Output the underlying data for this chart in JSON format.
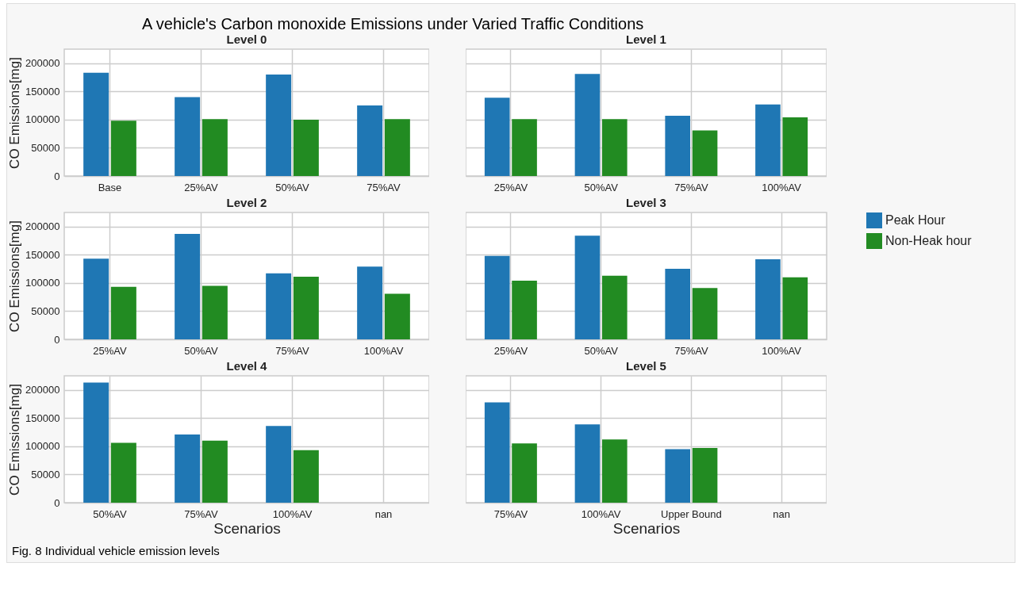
{
  "chart_data": [
    {
      "type": "bar",
      "title": "Level 0",
      "ylabel": "CO Emissions[mg]",
      "annotations": [
        "A vehicle's Carbon monoxide Emissions under Varied Traffic Conditions"
      ],
      "categories": [
        "Base",
        "25%AV",
        "50%AV",
        "75%AV"
      ],
      "series": [
        {
          "color": "#1f77b4",
          "values": [
            183000,
            140000,
            180000,
            125000
          ]
        },
        {
          "color": "#228b22",
          "values": [
            98000,
            101000,
            100000,
            101000
          ]
        }
      ],
      "ylim": [
        0,
        225000
      ],
      "yticks": [
        0,
        50000,
        100000,
        150000,
        200000
      ],
      "grid": true
    },
    {
      "type": "bar",
      "title": "Level 1",
      "categories": [
        "25%AV",
        "50%AV",
        "75%AV",
        "100%AV"
      ],
      "series": [
        {
          "color": "#1f77b4",
          "values": [
            139000,
            181000,
            107000,
            127000
          ]
        },
        {
          "color": "#228b22",
          "values": [
            101000,
            101000,
            81000,
            104000
          ]
        }
      ],
      "ylim": [
        0,
        225000
      ],
      "yticks": [
        0,
        50000,
        100000,
        150000,
        200000
      ],
      "grid": true,
      "tick_labels": "x"
    },
    {
      "type": "bar",
      "title": "Level 2",
      "ylabel": "CO Emissions[mg]",
      "categories": [
        "25%AV",
        "50%AV",
        "75%AV",
        "100%AV"
      ],
      "series": [
        {
          "color": "#1f77b4",
          "values": [
            143000,
            187000,
            117000,
            129000
          ]
        },
        {
          "color": "#228b22",
          "values": [
            93000,
            95000,
            111000,
            81000
          ]
        }
      ],
      "ylim": [
        0,
        225000
      ],
      "yticks": [
        0,
        50000,
        100000,
        150000,
        200000
      ],
      "grid": true
    },
    {
      "type": "bar",
      "title": "Level 3",
      "categories": [
        "25%AV",
        "50%AV",
        "75%AV",
        "100%AV"
      ],
      "series": [
        {
          "name": "Peak Hour",
          "color": "#1f77b4",
          "values": [
            148000,
            184000,
            125000,
            142000
          ]
        },
        {
          "name": "Non-Heak hour",
          "color": "#228b22",
          "values": [
            104000,
            113000,
            91000,
            110000
          ]
        }
      ],
      "ylim": [
        0,
        225000
      ],
      "yticks": [
        0,
        50000,
        100000,
        150000,
        200000
      ],
      "grid": true,
      "tick_labels": "x",
      "legend": "right"
    },
    {
      "type": "bar",
      "title": "Level 4",
      "ylabel": "CO Emissions[mg]",
      "xlabel": "Scenarios",
      "categories": [
        "50%AV",
        "75%AV",
        "100%AV",
        "nan"
      ],
      "series": [
        {
          "color": "#1f77b4",
          "values": [
            213000,
            121000,
            136000,
            null
          ]
        },
        {
          "color": "#228b22",
          "values": [
            106000,
            110000,
            93000,
            null
          ]
        }
      ],
      "ylim": [
        0,
        225000
      ],
      "yticks": [
        0,
        50000,
        100000,
        150000,
        200000
      ],
      "grid": true
    },
    {
      "type": "bar",
      "title": "Level 5",
      "xlabel": "Scenarios",
      "annotations": [
        "Fig. 8 Individual vehicle emission levels"
      ],
      "categories": [
        "75%AV",
        "100%AV",
        "Upper Bound",
        "nan"
      ],
      "series": [
        {
          "color": "#1f77b4",
          "values": [
            178000,
            139000,
            95000,
            null
          ]
        },
        {
          "color": "#228b22",
          "values": [
            105000,
            112000,
            97000,
            null
          ]
        }
      ],
      "ylim": [
        0,
        225000
      ],
      "yticks": [
        0,
        50000,
        100000,
        150000,
        200000
      ],
      "grid": true,
      "tick_labels": "x"
    }
  ]
}
